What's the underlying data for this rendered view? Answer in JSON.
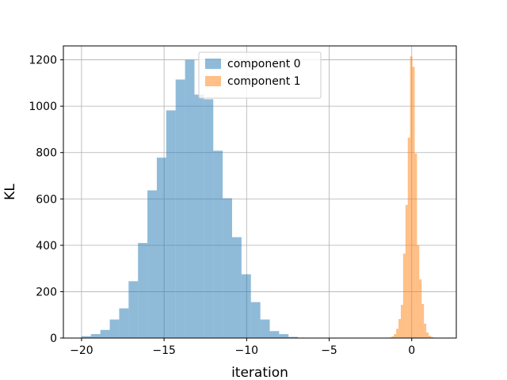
{
  "chart_data": {
    "type": "histogram",
    "title": "",
    "xlabel": "iteration",
    "ylabel": "KL",
    "xlim": [
      -21.1,
      2.7
    ],
    "ylim": [
      0,
      1260
    ],
    "xticks": [
      -20,
      -15,
      -10,
      -5,
      0
    ],
    "yticks": [
      0,
      200,
      400,
      600,
      800,
      1000,
      1200
    ],
    "grid": true,
    "legend_position": "top-center",
    "series": [
      {
        "name": "component 0",
        "color": "#1f77b4",
        "alpha": 0.5,
        "bins": [
          {
            "x0": -20.0,
            "x1": -19.43,
            "count": 8
          },
          {
            "x0": -19.43,
            "x1": -18.86,
            "count": 17
          },
          {
            "x0": -18.86,
            "x1": -18.29,
            "count": 35
          },
          {
            "x0": -18.29,
            "x1": -17.72,
            "count": 80
          },
          {
            "x0": -17.72,
            "x1": -17.15,
            "count": 128
          },
          {
            "x0": -17.15,
            "x1": -16.58,
            "count": 245
          },
          {
            "x0": -16.58,
            "x1": -16.01,
            "count": 410
          },
          {
            "x0": -16.01,
            "x1": -15.44,
            "count": 637
          },
          {
            "x0": -15.44,
            "x1": -14.87,
            "count": 778
          },
          {
            "x0": -14.87,
            "x1": -14.3,
            "count": 982
          },
          {
            "x0": -14.3,
            "x1": -13.73,
            "count": 1115
          },
          {
            "x0": -13.73,
            "x1": -13.16,
            "count": 1200
          },
          {
            "x0": -13.16,
            "x1": -12.59,
            "count": 1050
          },
          {
            "x0": -12.59,
            "x1": -12.02,
            "count": 1030
          },
          {
            "x0": -12.02,
            "x1": -11.45,
            "count": 808
          },
          {
            "x0": -11.45,
            "x1": -10.88,
            "count": 603
          },
          {
            "x0": -10.88,
            "x1": -10.31,
            "count": 435
          },
          {
            "x0": -10.31,
            "x1": -9.74,
            "count": 275
          },
          {
            "x0": -9.74,
            "x1": -9.17,
            "count": 155
          },
          {
            "x0": -9.17,
            "x1": -8.6,
            "count": 80
          },
          {
            "x0": -8.6,
            "x1": -8.03,
            "count": 30
          },
          {
            "x0": -8.03,
            "x1": -7.46,
            "count": 17
          },
          {
            "x0": -7.46,
            "x1": -6.89,
            "count": 5
          }
        ]
      },
      {
        "name": "component 1",
        "color": "#ff7f0e",
        "alpha": 0.5,
        "bins": [
          {
            "x0": -1.36,
            "x1": -1.22,
            "count": 3
          },
          {
            "x0": -1.22,
            "x1": -1.08,
            "count": 7
          },
          {
            "x0": -1.08,
            "x1": -0.94,
            "count": 17
          },
          {
            "x0": -0.94,
            "x1": -0.8,
            "count": 40
          },
          {
            "x0": -0.8,
            "x1": -0.66,
            "count": 82
          },
          {
            "x0": -0.66,
            "x1": -0.52,
            "count": 143
          },
          {
            "x0": -0.52,
            "x1": -0.38,
            "count": 364
          },
          {
            "x0": -0.38,
            "x1": -0.24,
            "count": 574
          },
          {
            "x0": -0.24,
            "x1": -0.1,
            "count": 864
          },
          {
            "x0": -0.1,
            "x1": 0.04,
            "count": 1215
          },
          {
            "x0": 0.04,
            "x1": 0.18,
            "count": 1170
          },
          {
            "x0": 0.18,
            "x1": 0.32,
            "count": 796
          },
          {
            "x0": 0.32,
            "x1": 0.46,
            "count": 400
          },
          {
            "x0": 0.46,
            "x1": 0.6,
            "count": 253
          },
          {
            "x0": 0.6,
            "x1": 0.74,
            "count": 147
          },
          {
            "x0": 0.74,
            "x1": 0.88,
            "count": 62
          },
          {
            "x0": 0.88,
            "x1": 1.02,
            "count": 24
          },
          {
            "x0": 1.02,
            "x1": 1.16,
            "count": 10
          },
          {
            "x0": 1.16,
            "x1": 1.3,
            "count": 5
          }
        ]
      }
    ]
  }
}
